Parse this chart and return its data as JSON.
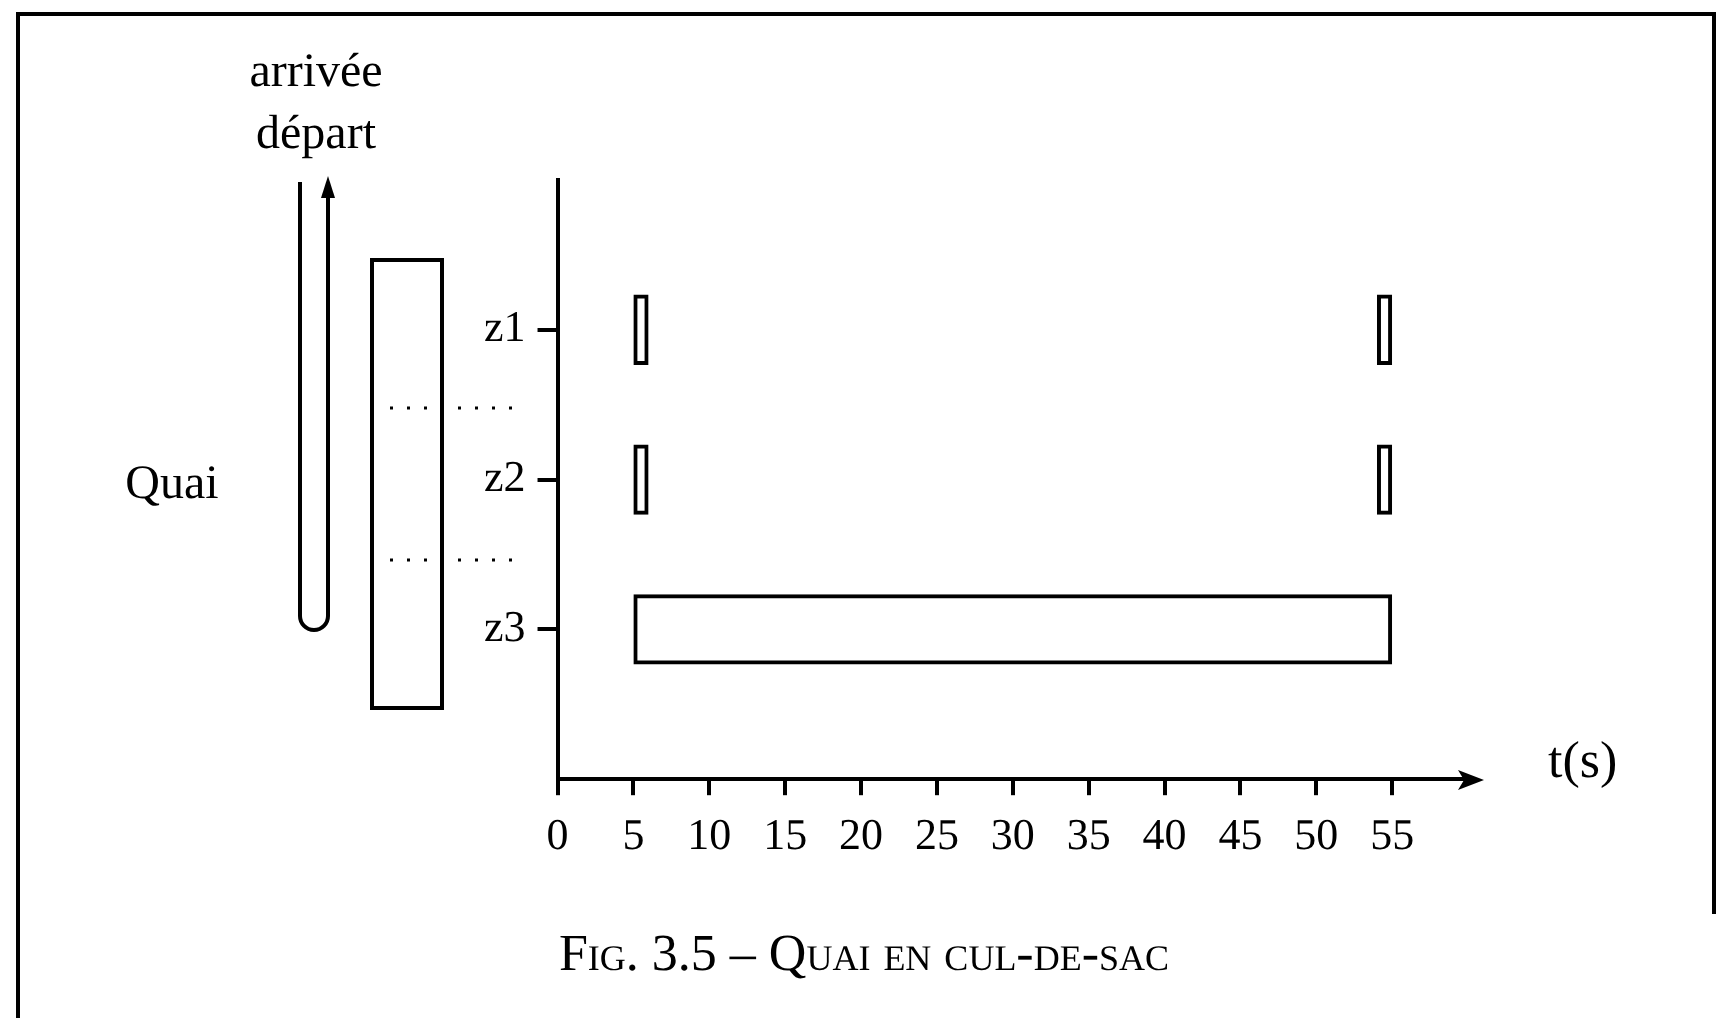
{
  "chart_data": {
    "type": "bar",
    "orientation": "horizontal",
    "title": "Fig. 3.5 – Quai en cul-de-sac",
    "xlabel": "t(s)",
    "categories": [
      "z1",
      "z2",
      "z3"
    ],
    "series": [
      {
        "color": "#000000",
        "values": [
          1,
          1,
          50
        ],
        "base": [
          5,
          5,
          5
        ]
      },
      {
        "color": "#000000",
        "values": [
          1,
          1,
          null
        ],
        "base": [
          54,
          54,
          null
        ]
      }
    ],
    "xlim": [
      0,
      60
    ],
    "xticks": [
      0,
      5,
      10,
      15,
      20,
      25,
      30,
      35,
      40,
      45,
      50,
      55
    ],
    "annotations": [
      "arrivée",
      "départ",
      "Quai"
    ],
    "legend": false
  }
}
